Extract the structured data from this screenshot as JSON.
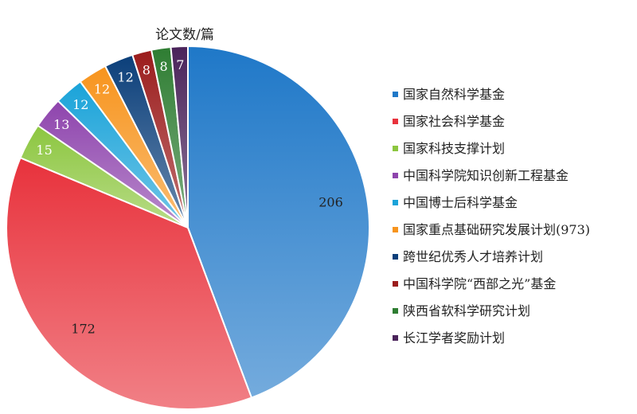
{
  "chart_data": {
    "type": "pie",
    "title": "论文数/篇",
    "categories": [
      "国家自然科学基金",
      "国家社会科学基金",
      "国家科技支撑计划",
      "中国科学院知识创新工程基金",
      "中国博士后科学基金",
      "国家重点基础研究发展计划(973)",
      "跨世纪优秀人才培养计划",
      "中国科学院“西部之光”基金",
      "陕西省软科学研究计划",
      "长江学者奖励计划"
    ],
    "values": [
      206,
      172,
      15,
      13,
      12,
      12,
      12,
      8,
      8,
      7
    ],
    "value_labels": [
      "206",
      "172",
      "15",
      "13",
      "12",
      "12",
      "12",
      "8",
      "8",
      "7"
    ],
    "colors": [
      "#1f78c8",
      "#e8323c",
      "#8cc63f",
      "#8e44ad",
      "#1aa3d9",
      "#f7941d",
      "#0b3f7a",
      "#9b1c1c",
      "#2e7d32",
      "#4a235a"
    ],
    "legend_position": "right",
    "start_angle_deg": 0,
    "direction": "clockwise"
  }
}
